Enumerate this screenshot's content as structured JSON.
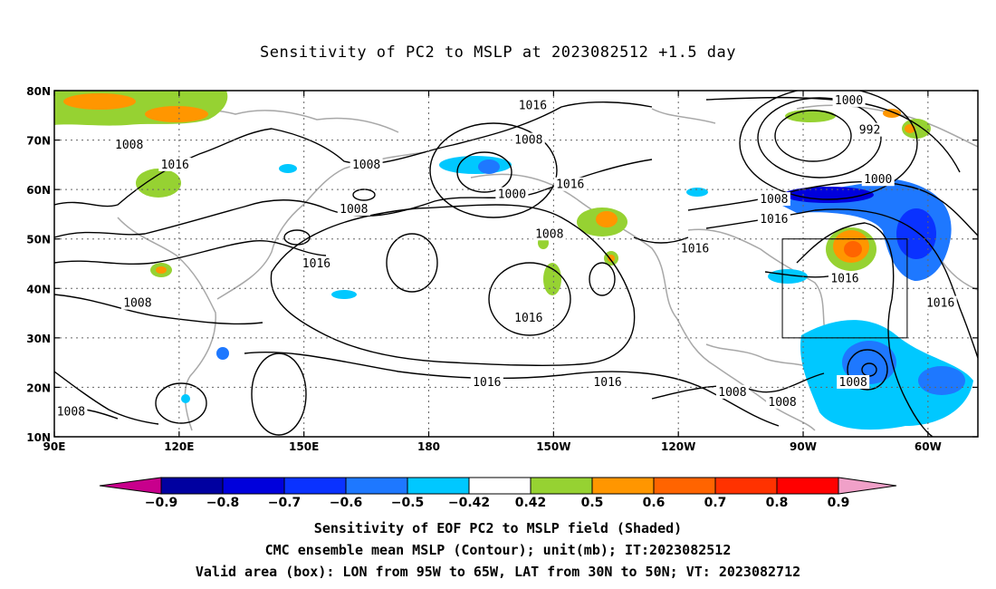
{
  "title": "Sensitivity of PC2 to MSLP at 2023082512 +1.5 day",
  "map": {
    "lon_range": [
      90,
      312
    ],
    "lat_range": [
      10,
      80
    ],
    "lon_ticks": [
      {
        "lon": 90,
        "label": "90E"
      },
      {
        "lon": 120,
        "label": "120E"
      },
      {
        "lon": 150,
        "label": "150E"
      },
      {
        "lon": 180,
        "label": "180"
      },
      {
        "lon": 210,
        "label": "150W"
      },
      {
        "lon": 240,
        "label": "120W"
      },
      {
        "lon": 270,
        "label": "90W"
      },
      {
        "lon": 300,
        "label": "60W"
      }
    ],
    "lat_ticks": [
      {
        "lat": 10,
        "label": "10N"
      },
      {
        "lat": 20,
        "label": "20N"
      },
      {
        "lat": 30,
        "label": "30N"
      },
      {
        "lat": 40,
        "label": "40N"
      },
      {
        "lat": 50,
        "label": "50N"
      },
      {
        "lat": 60,
        "label": "60N"
      },
      {
        "lat": 70,
        "label": "70N"
      },
      {
        "lat": 80,
        "label": "80N"
      }
    ],
    "gridlines": true,
    "valid_box": {
      "lon_min": 265,
      "lon_max": 295,
      "lat_min": 30,
      "lat_max": 50
    },
    "contour_labels": [
      {
        "text": "1016",
        "lon": 205,
        "lat": 77
      },
      {
        "text": "1008",
        "lon": 204,
        "lat": 70
      },
      {
        "text": "1008",
        "lon": 108,
        "lat": 69
      },
      {
        "text": "1016",
        "lon": 119,
        "lat": 65
      },
      {
        "text": "1008",
        "lon": 165,
        "lat": 65
      },
      {
        "text": "1000",
        "lon": 200,
        "lat": 59
      },
      {
        "text": "1016",
        "lon": 214,
        "lat": 61
      },
      {
        "text": "1008",
        "lon": 162,
        "lat": 56
      },
      {
        "text": "1008",
        "lon": 209,
        "lat": 51
      },
      {
        "text": "1016",
        "lon": 153,
        "lat": 45
      },
      {
        "text": "1016",
        "lon": 244,
        "lat": 48
      },
      {
        "text": "1008",
        "lon": 110,
        "lat": 37
      },
      {
        "text": "1016",
        "lon": 204,
        "lat": 34
      },
      {
        "text": "1016",
        "lon": 194,
        "lat": 21
      },
      {
        "text": "1016",
        "lon": 223,
        "lat": 21
      },
      {
        "text": "1008",
        "lon": 253,
        "lat": 19
      },
      {
        "text": "1008",
        "lon": 265,
        "lat": 17
      },
      {
        "text": "1008",
        "lon": 94,
        "lat": 15
      },
      {
        "text": "1000",
        "lon": 281,
        "lat": 78
      },
      {
        "text": "992",
        "lon": 286,
        "lat": 72
      },
      {
        "text": "1000",
        "lon": 288,
        "lat": 62
      },
      {
        "text": "1008",
        "lon": 263,
        "lat": 58
      },
      {
        "text": "1016",
        "lon": 263,
        "lat": 54
      },
      {
        "text": "1016",
        "lon": 280,
        "lat": 42
      },
      {
        "text": "1016",
        "lon": 303,
        "lat": 37
      },
      {
        "text": "1008",
        "lon": 282,
        "lat": 21
      }
    ]
  },
  "colorbar": {
    "labels": [
      "−0.9",
      "−0.8",
      "−0.7",
      "−0.6",
      "−0.5",
      "−0.42",
      "0.42",
      "0.5",
      "0.6",
      "0.7",
      "0.8",
      "0.9"
    ],
    "colors": {
      "min_arrow": "#c8008c",
      "max_arrow": "#f0a0c8",
      "bins": [
        "#0000a0",
        "#0000dc",
        "#0a32ff",
        "#1e78ff",
        "#00c8ff",
        "#ffffff",
        "#96d232",
        "#ff9600",
        "#ff6400",
        "#ff3200",
        "#ff0000"
      ]
    }
  },
  "captions": [
    "Sensitivity of EOF PC2 to MSLP field (Shaded)",
    "CMC ensemble mean MSLP (Contour); unit(mb); IT:2023082512",
    "Valid area (box): LON from 95W to 65W, LAT from 30N to 50N; VT: 2023082712"
  ]
}
